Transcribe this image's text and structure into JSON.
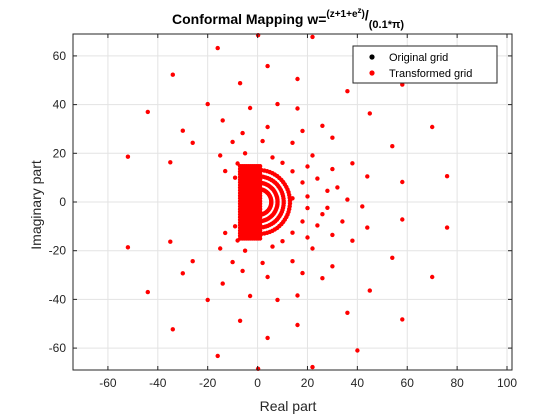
{
  "chart_data": {
    "type": "scatter",
    "title": {
      "main": "Conformal Mapping w=",
      "numerator_exponent": "(z+1+e",
      "numerator_exponent_sup": "z",
      "numerator_exponent_close": ")",
      "slash": "/",
      "denominator": "(0.1*π)"
    },
    "xlabel": "Real part",
    "ylabel": "Imaginary part",
    "xlim": [
      -74,
      102
    ],
    "ylim": [
      -69,
      69
    ],
    "xticks": [
      -60,
      -40,
      -20,
      0,
      20,
      40,
      60,
      80,
      100
    ],
    "yticks": [
      -60,
      -40,
      -20,
      0,
      20,
      40,
      60
    ],
    "xtick_labels": [
      "-60",
      "-40",
      "-20",
      "0",
      "20",
      "40",
      "60",
      "80",
      "100"
    ],
    "ytick_labels": [
      "-60",
      "-40",
      "-20",
      "0",
      "20",
      "40",
      "60"
    ],
    "grid": true,
    "legend": {
      "placement": "top-right",
      "entries": [
        {
          "label": "Original grid",
          "color": "#000000"
        },
        {
          "label": "Transformed grid",
          "color": "#ff0000"
        }
      ]
    },
    "series": [
      {
        "name": "Transformed grid",
        "color": "#ff0000",
        "points": [
          [
            0.2,
            68.5
          ],
          [
            -16,
            63.2
          ],
          [
            22,
            67.8
          ],
          [
            -34,
            52.3
          ],
          [
            4,
            55.8
          ],
          [
            -7,
            48.8
          ],
          [
            16,
            50.5
          ],
          [
            36,
            45.5
          ],
          [
            58,
            48.2
          ],
          [
            -44,
            37
          ],
          [
            -20,
            40.2
          ],
          [
            -3,
            38.6
          ],
          [
            8,
            40.2
          ],
          [
            -30,
            29.3
          ],
          [
            -14,
            33.5
          ],
          [
            16,
            38.4
          ],
          [
            26,
            31.3
          ],
          [
            45,
            36.4
          ],
          [
            70,
            30.8
          ],
          [
            -6,
            28.3
          ],
          [
            4,
            30.8
          ],
          [
            18,
            29.2
          ],
          [
            -26,
            24.3
          ],
          [
            -10,
            24.7
          ],
          [
            2,
            25
          ],
          [
            14,
            24.3
          ],
          [
            30,
            26.4
          ],
          [
            54,
            22.9
          ],
          [
            -52,
            18.6
          ],
          [
            -35,
            16.3
          ],
          [
            -15,
            19.1
          ],
          [
            -5,
            20
          ],
          [
            6,
            18.3
          ],
          [
            22,
            19.1
          ],
          [
            38,
            15.9
          ],
          [
            -8,
            15.8
          ],
          [
            10,
            16.1
          ],
          [
            20,
            14.6
          ],
          [
            58,
            8.2
          ],
          [
            76,
            10.6
          ],
          [
            -13,
            12.7
          ],
          [
            14,
            12.6
          ],
          [
            30,
            13.5
          ],
          [
            -9,
            10
          ],
          [
            24,
            9.6
          ],
          [
            44,
            10.5
          ],
          [
            18,
            8
          ],
          [
            28,
            4.6
          ],
          [
            36,
            1
          ],
          [
            20,
            2.3
          ],
          [
            14,
            1.5
          ],
          [
            42,
            -1.8
          ],
          [
            28,
            -2.4
          ],
          [
            20,
            -2.5
          ],
          [
            58,
            -7.2
          ],
          [
            76,
            -10.5
          ],
          [
            44,
            -10.5
          ],
          [
            24,
            -9.6
          ],
          [
            18,
            -8
          ],
          [
            30,
            -13.5
          ],
          [
            14,
            -12.6
          ],
          [
            -13,
            -12.7
          ],
          [
            -9,
            -10
          ],
          [
            -52,
            -18.6
          ],
          [
            -35,
            -16.3
          ],
          [
            -15,
            -19.1
          ],
          [
            -5,
            -20
          ],
          [
            6,
            -18.3
          ],
          [
            22,
            -19.1
          ],
          [
            38,
            -15.9
          ],
          [
            -8,
            -15.8
          ],
          [
            10,
            -16.1
          ],
          [
            20,
            -14.6
          ],
          [
            -26,
            -24.3
          ],
          [
            -10,
            -24.7
          ],
          [
            2,
            -25
          ],
          [
            14,
            -24.3
          ],
          [
            30,
            -26.4
          ],
          [
            54,
            -22.9
          ],
          [
            -6,
            -28.3
          ],
          [
            4,
            -30.8
          ],
          [
            18,
            -29.2
          ],
          [
            -30,
            -29.3
          ],
          [
            -14,
            -33.5
          ],
          [
            16,
            -38.4
          ],
          [
            26,
            -31.3
          ],
          [
            45,
            -36.4
          ],
          [
            70,
            -30.8
          ],
          [
            -44,
            -37
          ],
          [
            -20,
            -40.2
          ],
          [
            -3,
            -38.6
          ],
          [
            8,
            -40.2
          ],
          [
            -7,
            -48.8
          ],
          [
            16,
            -50.5
          ],
          [
            36,
            -45.5
          ],
          [
            58,
            -48.2
          ],
          [
            -34,
            -52.3
          ],
          [
            4,
            -55.8
          ],
          [
            -16,
            -63.2
          ],
          [
            22,
            -67.8
          ],
          [
            0.2,
            -68.5
          ],
          [
            40,
            -61
          ],
          [
            26,
            -5
          ],
          [
            32,
            6
          ],
          [
            34,
            -8
          ]
        ]
      }
    ]
  }
}
